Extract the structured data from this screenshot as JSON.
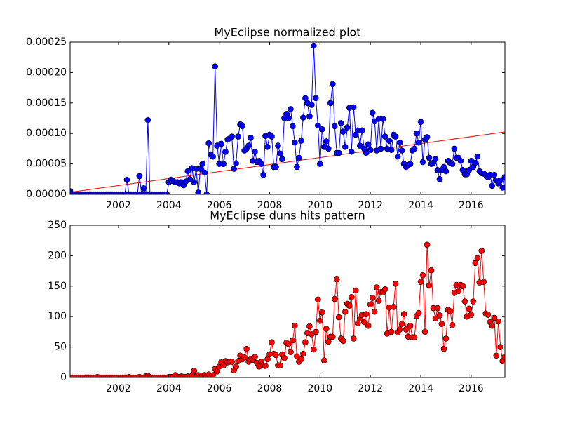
{
  "chart_data": [
    {
      "type": "line",
      "title": "MyEclipse normalized plot",
      "x": [
        2000.083,
        2000.167,
        2000.25,
        2000.333,
        2000.417,
        2000.5,
        2000.583,
        2000.667,
        2000.75,
        2000.833,
        2000.917,
        2001,
        2001.083,
        2001.167,
        2001.25,
        2001.333,
        2001.417,
        2001.5,
        2001.583,
        2001.667,
        2001.75,
        2001.833,
        2001.917,
        2002,
        2002.083,
        2002.167,
        2002.25,
        2002.333,
        2002.417,
        2002.5,
        2002.583,
        2002.667,
        2002.75,
        2002.833,
        2002.917,
        2003,
        2003.083,
        2003.167,
        2003.25,
        2003.333,
        2003.417,
        2003.5,
        2003.583,
        2003.667,
        2003.75,
        2003.833,
        2003.917,
        2004,
        2004.083,
        2004.167,
        2004.25,
        2004.333,
        2004.417,
        2004.5,
        2004.583,
        2004.667,
        2004.75,
        2004.833,
        2004.917,
        2005,
        2005.083,
        2005.167,
        2005.25,
        2005.333,
        2005.417,
        2005.5,
        2005.583,
        2005.667,
        2005.75,
        2005.833,
        2005.917,
        2006,
        2006.083,
        2006.167,
        2006.25,
        2006.333,
        2006.417,
        2006.5,
        2006.583,
        2006.667,
        2006.75,
        2006.833,
        2006.917,
        2007,
        2007.083,
        2007.167,
        2007.25,
        2007.333,
        2007.417,
        2007.5,
        2007.583,
        2007.667,
        2007.75,
        2007.833,
        2007.917,
        2008,
        2008.083,
        2008.167,
        2008.25,
        2008.333,
        2008.417,
        2008.5,
        2008.583,
        2008.667,
        2008.75,
        2008.833,
        2008.917,
        2009,
        2009.083,
        2009.167,
        2009.25,
        2009.333,
        2009.417,
        2009.5,
        2009.583,
        2009.667,
        2009.75,
        2009.833,
        2009.917,
        2010,
        2010.083,
        2010.167,
        2010.25,
        2010.333,
        2010.417,
        2010.5,
        2010.583,
        2010.667,
        2010.75,
        2010.833,
        2010.917,
        2011,
        2011.083,
        2011.167,
        2011.25,
        2011.333,
        2011.417,
        2011.5,
        2011.583,
        2011.667,
        2011.75,
        2011.833,
        2011.917,
        2012,
        2012.083,
        2012.167,
        2012.25,
        2012.333,
        2012.417,
        2012.5,
        2012.583,
        2012.667,
        2012.75,
        2012.833,
        2012.917,
        2013,
        2013.083,
        2013.167,
        2013.25,
        2013.333,
        2013.417,
        2013.5,
        2013.583,
        2013.667,
        2013.75,
        2013.833,
        2013.917,
        2014,
        2014.083,
        2014.167,
        2014.25,
        2014.333,
        2014.417,
        2014.5,
        2014.583,
        2014.667,
        2014.75,
        2014.833,
        2014.917,
        2015,
        2015.083,
        2015.167,
        2015.25,
        2015.333,
        2015.417,
        2015.5,
        2015.583,
        2015.667,
        2015.75,
        2015.833,
        2015.917,
        2016,
        2016.083,
        2016.167,
        2016.25,
        2016.333,
        2016.417,
        2016.5,
        2016.583,
        2016.667,
        2016.75,
        2016.833,
        2016.917,
        2017,
        2017.083,
        2017.167,
        2017.25,
        2017.333
      ],
      "series": [
        {
          "color": "#0000ff",
          "values": [
            5e-06,
            0,
            0,
            0,
            0,
            0,
            0,
            0,
            0,
            0,
            0,
            0,
            0,
            0,
            0,
            0,
            0,
            0,
            0,
            0,
            0,
            0,
            0,
            0,
            0,
            0,
            0,
            2.4e-05,
            0,
            0,
            0,
            0,
            0,
            3e-05,
            0,
            1e-05,
            0,
            0.000122,
            0,
            0,
            0,
            0,
            0,
            0,
            0,
            0,
            0,
            2e-05,
            2.4e-05,
            2.2e-05,
            2e-05,
            2e-05,
            1.8e-05,
            2e-05,
            1.5e-05,
            2.1e-05,
            3.8e-05,
            2.5e-05,
            4.3e-05,
            2e-05,
            4.2e-05,
            3e-06,
            4.2e-05,
            5e-05,
            3.6e-05,
            0,
            8.4e-05,
            6.5e-05,
            6.2e-05,
            0.00021,
            8e-05,
            5e-05,
            8.3e-05,
            5e-05,
            7e-05,
            9e-05,
            9.2e-05,
            9.5e-05,
            4.2e-05,
            5.1e-05,
            9.5e-05,
            0.000115,
            0.000112,
            7.2e-05,
            7.5e-05,
            8e-05,
            9.3e-05,
            5.5e-05,
            7e-05,
            5.3e-05,
            5.5e-05,
            5e-05,
            3.2e-05,
            9.6e-05,
            7.8e-05,
            9.8e-05,
            9.5e-05,
            4.5e-05,
            4.5e-05,
            8e-05,
            6.7e-05,
            5.8e-05,
            0.000125,
            0.000132,
            0.000125,
            0.00014,
            0.000112,
            8.5e-05,
            4.5e-05,
            6e-05,
            8.8e-05,
            0.000126,
            0.000158,
            0.00015,
            0.000128,
            0.000147,
            0.000244,
            0.000158,
            0.000113,
            5e-05,
            0.000107,
            7.8e-05,
            8.7e-05,
            7.5e-05,
            0.00015,
            0.000181,
            0.000112,
            6.8e-05,
            6.8e-05,
            0.000117,
            0.000103,
            7.8e-05,
            0.00011,
            0.000142,
            7e-05,
            0.000143,
            9.8e-05,
            0.000105,
            8e-05,
            0.000105,
            7.5e-05,
            6.8e-05,
            8.2e-05,
            7.3e-05,
            0.000134,
            0.00012,
            7.2e-05,
            0.000124,
            7.5e-05,
            0.000124,
            9.5e-05,
            7.5e-05,
            8.8e-05,
            7.3e-05,
            9.8e-05,
            9.5e-05,
            6.2e-05,
            8.5e-05,
            7.2e-05,
            5e-05,
            4.5e-05,
            4.8e-05,
            5e-05,
            7.2e-05,
            7.5e-05,
            0.0001,
            8.5e-05,
            0.000119,
            5.3e-05,
            9e-05,
            9.4e-05,
            6e-05,
            5e-05,
            5.2e-05,
            5.8e-05,
            4e-05,
            2.5e-05,
            4e-05,
            4.5e-05,
            3.8e-05,
            5.5e-05,
            5.2e-05,
            5e-05,
            7.5e-05,
            6e-05,
            6e-05,
            5.5e-05,
            4e-05,
            3.3e-05,
            3.3e-05,
            4e-05,
            5.5e-05,
            4.5e-05,
            5.2e-05,
            6.2e-05,
            3.8e-05,
            3.5e-05,
            3.4e-05,
            3.2e-05,
            2.8e-05,
            3.2e-05,
            1.4e-05,
            3.2e-05,
            2.3e-05,
            1.8e-05,
            2.3e-05,
            1.1e-05,
            2.8e-05
          ]
        }
      ],
      "trend_line": {
        "color": "#ff0000",
        "x": [
          2000.08,
          2017.34
        ],
        "values": [
          3.5e-06,
          0.0001025
        ]
      },
      "xlim": [
        2000.08,
        2017.34
      ],
      "xticks": [
        2002,
        2004,
        2006,
        2008,
        2010,
        2012,
        2014,
        2016
      ],
      "ylim": [
        0,
        0.00025
      ],
      "yticks": [
        {
          "value": 0,
          "label": "0.00000"
        },
        {
          "value": 5e-05,
          "label": "0.00005"
        },
        {
          "value": 0.0001,
          "label": "0.00010"
        },
        {
          "value": 0.00015,
          "label": "0.00015"
        },
        {
          "value": 0.0002,
          "label": "0.00020"
        },
        {
          "value": 0.00025,
          "label": "0.00025"
        }
      ]
    },
    {
      "type": "line",
      "title": "MyEclipse duns hits pattern",
      "x": [
        2000.083,
        2000.167,
        2000.25,
        2000.333,
        2000.417,
        2000.5,
        2000.583,
        2000.667,
        2000.75,
        2000.833,
        2000.917,
        2001,
        2001.083,
        2001.167,
        2001.25,
        2001.333,
        2001.417,
        2001.5,
        2001.583,
        2001.667,
        2001.75,
        2001.833,
        2001.917,
        2002,
        2002.083,
        2002.167,
        2002.25,
        2002.333,
        2002.417,
        2002.5,
        2002.583,
        2002.667,
        2002.75,
        2002.833,
        2002.917,
        2003,
        2003.083,
        2003.167,
        2003.25,
        2003.333,
        2003.417,
        2003.5,
        2003.583,
        2003.667,
        2003.75,
        2003.833,
        2003.917,
        2004,
        2004.083,
        2004.167,
        2004.25,
        2004.333,
        2004.417,
        2004.5,
        2004.583,
        2004.667,
        2004.75,
        2004.833,
        2004.917,
        2005,
        2005.083,
        2005.167,
        2005.25,
        2005.333,
        2005.417,
        2005.5,
        2005.583,
        2005.667,
        2005.75,
        2005.833,
        2005.917,
        2006,
        2006.083,
        2006.167,
        2006.25,
        2006.333,
        2006.417,
        2006.5,
        2006.583,
        2006.667,
        2006.75,
        2006.833,
        2006.917,
        2007,
        2007.083,
        2007.167,
        2007.25,
        2007.333,
        2007.417,
        2007.5,
        2007.583,
        2007.667,
        2007.75,
        2007.833,
        2007.917,
        2008,
        2008.083,
        2008.167,
        2008.25,
        2008.333,
        2008.417,
        2008.5,
        2008.583,
        2008.667,
        2008.75,
        2008.833,
        2008.917,
        2009,
        2009.083,
        2009.167,
        2009.25,
        2009.333,
        2009.417,
        2009.5,
        2009.583,
        2009.667,
        2009.75,
        2009.833,
        2009.917,
        2010,
        2010.083,
        2010.167,
        2010.25,
        2010.333,
        2010.417,
        2010.5,
        2010.583,
        2010.667,
        2010.75,
        2010.833,
        2010.917,
        2011,
        2011.083,
        2011.167,
        2011.25,
        2011.333,
        2011.417,
        2011.5,
        2011.583,
        2011.667,
        2011.75,
        2011.833,
        2011.917,
        2012,
        2012.083,
        2012.167,
        2012.25,
        2012.333,
        2012.417,
        2012.5,
        2012.583,
        2012.667,
        2012.75,
        2012.833,
        2012.917,
        2013,
        2013.083,
        2013.167,
        2013.25,
        2013.333,
        2013.417,
        2013.5,
        2013.583,
        2013.667,
        2013.75,
        2013.833,
        2013.917,
        2014,
        2014.083,
        2014.167,
        2014.25,
        2014.333,
        2014.417,
        2014.5,
        2014.583,
        2014.667,
        2014.75,
        2014.833,
        2014.917,
        2015,
        2015.083,
        2015.167,
        2015.25,
        2015.333,
        2015.417,
        2015.5,
        2015.583,
        2015.667,
        2015.75,
        2015.833,
        2015.917,
        2016,
        2016.083,
        2016.167,
        2016.25,
        2016.333,
        2016.417,
        2016.5,
        2016.583,
        2016.667,
        2016.75,
        2016.833,
        2016.917,
        2017,
        2017.083,
        2017.167,
        2017.25,
        2017.333
      ],
      "series": [
        {
          "color": "#ff0000",
          "values": [
            0,
            0,
            0,
            0,
            0,
            0,
            0,
            0,
            0,
            0,
            0,
            0,
            0,
            1,
            0,
            0,
            0,
            0,
            0,
            0,
            0,
            0,
            0,
            0,
            0,
            0,
            0,
            0,
            1,
            0,
            0,
            0,
            0,
            1,
            0,
            0,
            2,
            3,
            0,
            0,
            0,
            0,
            0,
            0,
            0,
            0,
            0,
            1,
            1,
            1,
            4,
            1,
            1,
            2,
            1,
            1,
            2,
            1,
            3,
            11,
            2,
            4,
            1,
            3,
            4,
            2,
            5,
            2,
            4,
            14,
            10,
            18,
            25,
            20,
            27,
            25,
            26,
            26,
            12,
            18,
            27,
            36,
            30,
            33,
            47,
            26,
            30,
            29,
            34,
            24,
            18,
            26,
            20,
            19,
            30,
            38,
            58,
            39,
            37,
            20,
            20,
            38,
            32,
            57,
            55,
            42,
            61,
            85,
            35,
            26,
            30,
            39,
            58,
            73,
            84,
            71,
            46,
            75,
            128,
            93,
            107,
            28,
            80,
            59,
            67,
            67,
            129,
            161,
            99,
            64,
            60,
            108,
            121,
            118,
            132,
            64,
            143,
            89,
            97,
            103,
            91,
            104,
            85,
            120,
            131,
            108,
            148,
            126,
            140,
            140,
            145,
            72,
            115,
            75,
            116,
            154,
            74,
            79,
            88,
            104,
            79,
            67,
            85,
            66,
            66,
            101,
            106,
            157,
            168,
            75,
            218,
            151,
            176,
            114,
            97,
            114,
            102,
            88,
            47,
            64,
            111,
            109,
            86,
            139,
            152,
            142,
            152,
            150,
            125,
            100,
            113,
            103,
            125,
            188,
            196,
            156,
            208,
            157,
            105,
            103,
            91,
            85,
            98,
            36,
            92,
            50,
            27,
            34
          ]
        }
      ],
      "xlim": [
        2000.08,
        2017.34
      ],
      "xticks": [
        2002,
        2004,
        2006,
        2008,
        2010,
        2012,
        2014,
        2016
      ],
      "ylim": [
        0,
        250
      ],
      "yticks": [
        0,
        50,
        100,
        150,
        200,
        250
      ]
    }
  ]
}
